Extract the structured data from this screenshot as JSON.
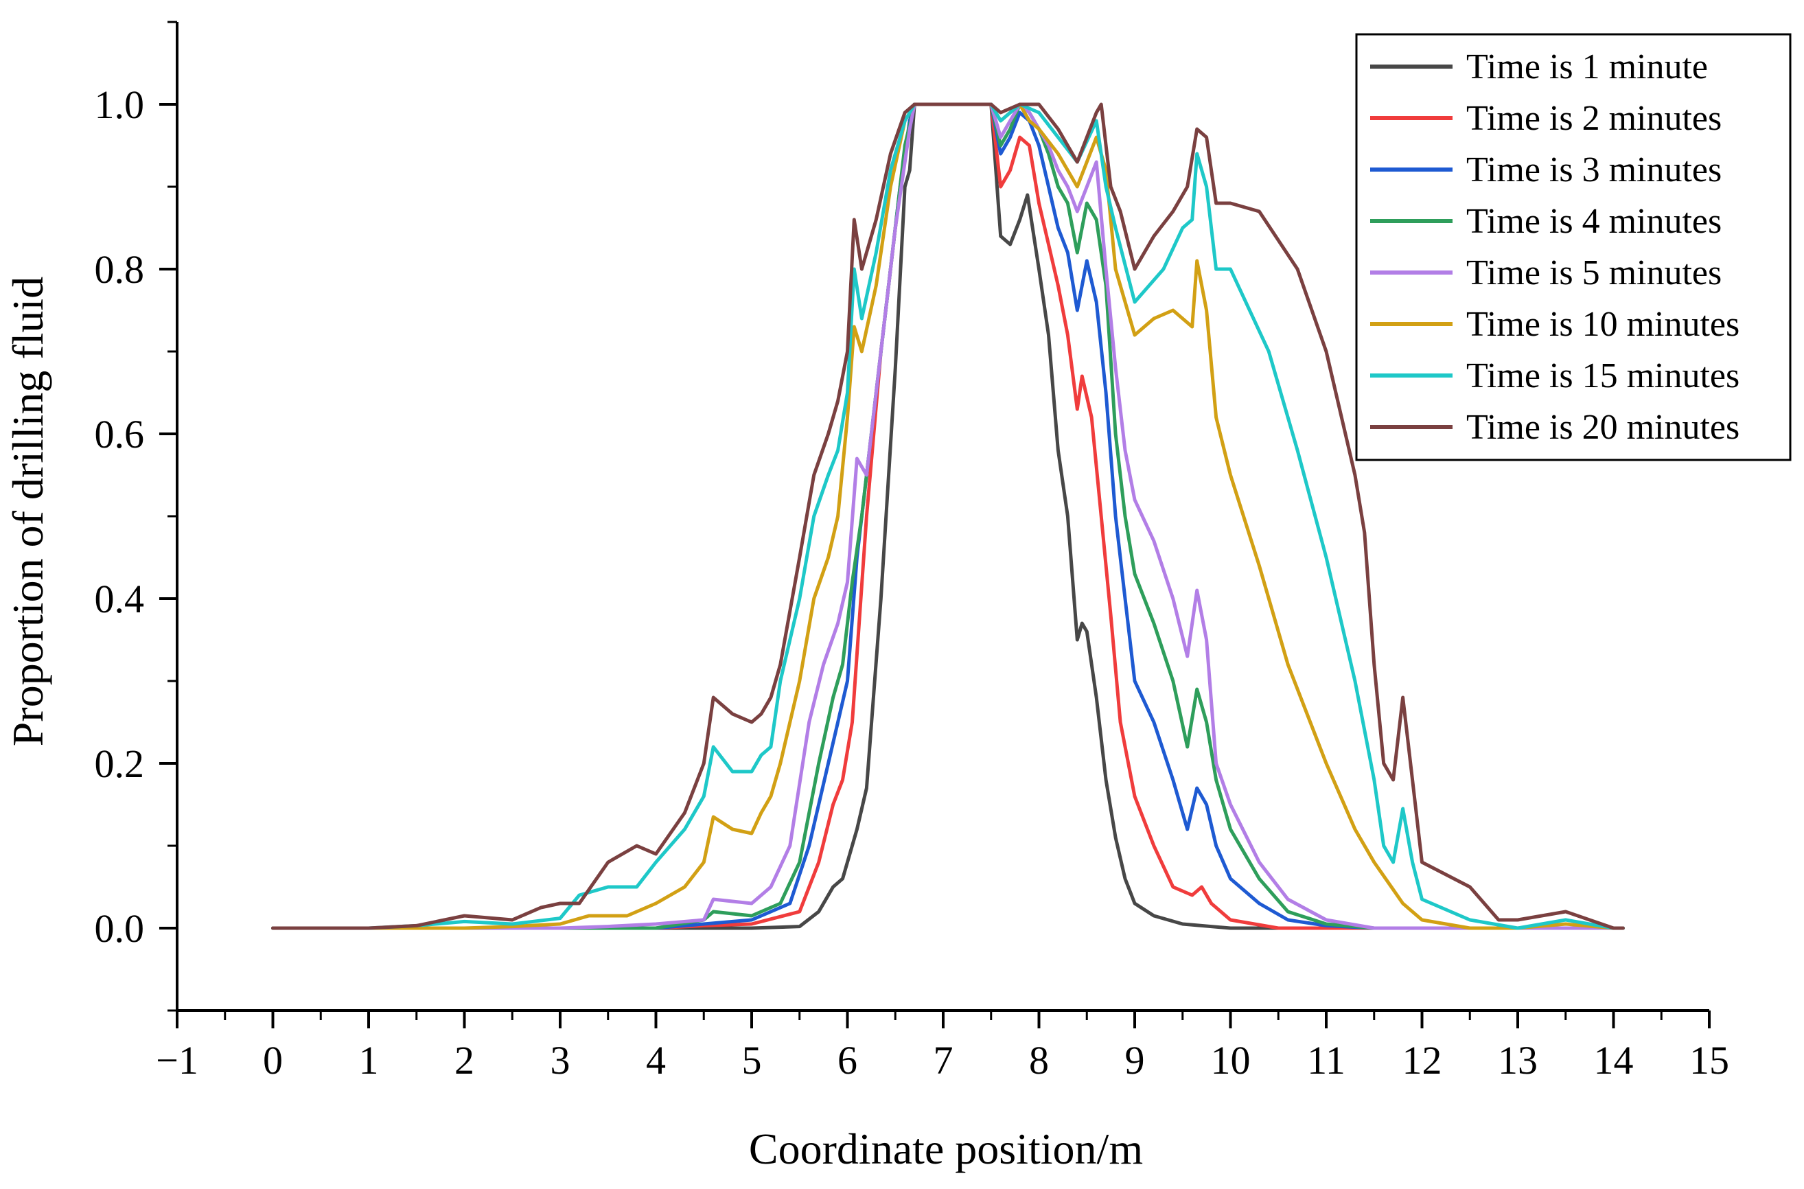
{
  "chart_data": {
    "type": "line",
    "title": "",
    "xlabel": "Coordinate position/m",
    "ylabel": "Proportion of drilling fluid",
    "xlim": [
      -1,
      15
    ],
    "ylim": [
      -0.1,
      1.1
    ],
    "xticks": [
      -1,
      0,
      1,
      2,
      3,
      4,
      5,
      6,
      7,
      8,
      9,
      10,
      11,
      12,
      13,
      14,
      15
    ],
    "xtick_labels": [
      "−1",
      "0",
      "1",
      "2",
      "3",
      "4",
      "5",
      "6",
      "7",
      "8",
      "9",
      "10",
      "11",
      "12",
      "13",
      "14",
      "15"
    ],
    "yticks": [
      0.0,
      0.2,
      0.4,
      0.6,
      0.8,
      1.0
    ],
    "ytick_labels": [
      "0.0",
      "0.2",
      "0.4",
      "0.6",
      "0.8",
      "1.0"
    ],
    "grid": false,
    "legend_position": "top-right",
    "series": [
      {
        "name": "Time is 1 minute",
        "color": "#474747",
        "x": [
          0,
          1,
          2,
          3,
          4,
          5,
          5.5,
          5.7,
          5.85,
          5.95,
          6.1,
          6.2,
          6.35,
          6.5,
          6.6,
          6.65,
          6.7,
          6.75,
          7.0,
          7.5,
          7.6,
          7.7,
          7.8,
          7.88,
          8.0,
          8.1,
          8.2,
          8.3,
          8.4,
          8.45,
          8.5,
          8.6,
          8.7,
          8.8,
          8.9,
          9.0,
          9.2,
          9.5,
          10,
          11,
          12,
          13,
          14,
          14.1
        ],
        "y": [
          0,
          0,
          0,
          0,
          0,
          0,
          0.002,
          0.02,
          0.05,
          0.06,
          0.12,
          0.17,
          0.4,
          0.68,
          0.9,
          0.92,
          1.0,
          1.0,
          1.0,
          1.0,
          0.84,
          0.83,
          0.86,
          0.89,
          0.8,
          0.72,
          0.58,
          0.5,
          0.35,
          0.37,
          0.36,
          0.28,
          0.18,
          0.11,
          0.06,
          0.03,
          0.015,
          0.005,
          0,
          0,
          0,
          0,
          0,
          0
        ]
      },
      {
        "name": "Time is 2 minutes",
        "color": "#f03c3c",
        "x": [
          0,
          1,
          2,
          3,
          4,
          4.5,
          5,
          5.5,
          5.7,
          5.85,
          5.95,
          6.05,
          6.2,
          6.35,
          6.5,
          6.65,
          6.7,
          7.0,
          7.5,
          7.6,
          7.7,
          7.8,
          7.9,
          8.0,
          8.1,
          8.2,
          8.3,
          8.4,
          8.45,
          8.55,
          8.65,
          8.75,
          8.85,
          9.0,
          9.2,
          9.4,
          9.6,
          9.7,
          9.8,
          10.0,
          10.5,
          11,
          12,
          13,
          14,
          14.1
        ],
        "y": [
          0,
          0,
          0,
          0,
          0,
          0.003,
          0.005,
          0.02,
          0.08,
          0.15,
          0.18,
          0.25,
          0.5,
          0.7,
          0.85,
          0.98,
          1.0,
          1.0,
          1.0,
          0.9,
          0.92,
          0.96,
          0.95,
          0.88,
          0.83,
          0.78,
          0.72,
          0.63,
          0.67,
          0.62,
          0.5,
          0.38,
          0.25,
          0.16,
          0.1,
          0.05,
          0.04,
          0.05,
          0.03,
          0.01,
          0,
          0,
          0,
          0,
          0,
          0
        ]
      },
      {
        "name": "Time is 3 minutes",
        "color": "#1e5ad2",
        "x": [
          0,
          1,
          2,
          3,
          4,
          4.5,
          5,
          5.4,
          5.6,
          5.8,
          5.9,
          6.0,
          6.1,
          6.25,
          6.4,
          6.55,
          6.65,
          6.7,
          7.0,
          7.5,
          7.6,
          7.7,
          7.8,
          7.9,
          8.0,
          8.1,
          8.2,
          8.3,
          8.4,
          8.5,
          8.6,
          8.7,
          8.8,
          8.9,
          9.0,
          9.2,
          9.4,
          9.55,
          9.65,
          9.75,
          9.85,
          10.0,
          10.3,
          10.6,
          11,
          11.5,
          12,
          13,
          14,
          14.1
        ],
        "y": [
          0,
          0,
          0,
          0,
          0,
          0.005,
          0.01,
          0.03,
          0.1,
          0.2,
          0.25,
          0.3,
          0.45,
          0.6,
          0.75,
          0.9,
          0.98,
          1.0,
          1.0,
          1.0,
          0.94,
          0.96,
          0.99,
          0.98,
          0.95,
          0.9,
          0.85,
          0.82,
          0.75,
          0.81,
          0.76,
          0.65,
          0.5,
          0.4,
          0.3,
          0.25,
          0.18,
          0.12,
          0.17,
          0.15,
          0.1,
          0.06,
          0.03,
          0.01,
          0.003,
          0,
          0,
          0,
          0,
          0
        ]
      },
      {
        "name": "Time is 4 minutes",
        "color": "#2e9e5b",
        "x": [
          0,
          1,
          2,
          3,
          4,
          4.5,
          4.6,
          5,
          5.3,
          5.5,
          5.7,
          5.85,
          5.95,
          6.05,
          6.15,
          6.3,
          6.45,
          6.6,
          6.7,
          7.0,
          7.5,
          7.6,
          7.7,
          7.8,
          7.9,
          8.0,
          8.1,
          8.2,
          8.3,
          8.4,
          8.5,
          8.6,
          8.7,
          8.8,
          8.9,
          9.0,
          9.2,
          9.4,
          9.55,
          9.65,
          9.75,
          9.85,
          10.0,
          10.3,
          10.6,
          11,
          11.5,
          12,
          13,
          14,
          14.1
        ],
        "y": [
          0,
          0,
          0,
          0,
          0,
          0.01,
          0.02,
          0.015,
          0.03,
          0.08,
          0.2,
          0.28,
          0.32,
          0.42,
          0.5,
          0.65,
          0.8,
          0.95,
          1.0,
          1.0,
          1.0,
          0.95,
          0.97,
          1.0,
          0.99,
          0.97,
          0.94,
          0.9,
          0.88,
          0.82,
          0.88,
          0.86,
          0.78,
          0.6,
          0.5,
          0.43,
          0.37,
          0.3,
          0.22,
          0.29,
          0.25,
          0.18,
          0.12,
          0.06,
          0.02,
          0.005,
          0,
          0,
          0,
          0,
          0
        ]
      },
      {
        "name": "Time is 5 minutes",
        "color": "#b27ee6",
        "x": [
          0,
          1,
          2,
          3,
          3.5,
          4,
          4.5,
          4.6,
          5,
          5.2,
          5.4,
          5.6,
          5.75,
          5.9,
          6.0,
          6.1,
          6.2,
          6.35,
          6.5,
          6.65,
          6.7,
          7.0,
          7.5,
          7.6,
          7.7,
          7.8,
          7.9,
          8.0,
          8.1,
          8.2,
          8.3,
          8.4,
          8.5,
          8.6,
          8.7,
          8.8,
          8.9,
          9.0,
          9.2,
          9.4,
          9.55,
          9.65,
          9.75,
          9.85,
          10.0,
          10.3,
          10.6,
          11,
          11.5,
          12,
          13,
          14,
          14.1
        ],
        "y": [
          0,
          0,
          0,
          0,
          0.002,
          0.005,
          0.01,
          0.035,
          0.03,
          0.05,
          0.1,
          0.25,
          0.32,
          0.37,
          0.42,
          0.57,
          0.55,
          0.7,
          0.85,
          0.97,
          1.0,
          1.0,
          1.0,
          0.96,
          0.98,
          1.0,
          0.99,
          0.97,
          0.95,
          0.92,
          0.9,
          0.87,
          0.9,
          0.93,
          0.8,
          0.68,
          0.58,
          0.52,
          0.47,
          0.4,
          0.33,
          0.41,
          0.35,
          0.2,
          0.15,
          0.08,
          0.035,
          0.01,
          0,
          0,
          0,
          0,
          0
        ]
      },
      {
        "name": "Time is 10 minutes",
        "color": "#d2a014",
        "x": [
          0,
          1,
          2,
          2.5,
          3,
          3.3,
          3.7,
          4,
          4.3,
          4.5,
          4.6,
          4.8,
          5,
          5.1,
          5.2,
          5.3,
          5.5,
          5.65,
          5.8,
          5.9,
          6.0,
          6.07,
          6.15,
          6.3,
          6.45,
          6.6,
          6.7,
          7.0,
          7.5,
          7.6,
          7.7,
          7.8,
          7.9,
          8.0,
          8.2,
          8.4,
          8.6,
          8.7,
          8.8,
          9.0,
          9.2,
          9.4,
          9.6,
          9.65,
          9.75,
          9.85,
          10.0,
          10.3,
          10.6,
          11,
          11.3,
          11.5,
          11.8,
          12,
          12.5,
          13,
          13.5,
          14,
          14.1
        ],
        "y": [
          0,
          0,
          0,
          0.002,
          0.005,
          0.015,
          0.015,
          0.03,
          0.05,
          0.08,
          0.135,
          0.12,
          0.115,
          0.14,
          0.16,
          0.2,
          0.3,
          0.4,
          0.45,
          0.5,
          0.62,
          0.73,
          0.7,
          0.78,
          0.9,
          0.98,
          1.0,
          1.0,
          1.0,
          0.98,
          0.99,
          1.0,
          0.98,
          0.97,
          0.94,
          0.9,
          0.96,
          0.92,
          0.8,
          0.72,
          0.74,
          0.75,
          0.73,
          0.81,
          0.75,
          0.62,
          0.55,
          0.44,
          0.32,
          0.2,
          0.12,
          0.08,
          0.03,
          0.01,
          0,
          0,
          0.005,
          0,
          0
        ]
      },
      {
        "name": "Time is 15 minutes",
        "color": "#1ec8c8",
        "x": [
          0,
          1,
          1.5,
          2,
          2.5,
          3,
          3.2,
          3.5,
          3.8,
          4,
          4.3,
          4.5,
          4.6,
          4.8,
          5,
          5.1,
          5.2,
          5.3,
          5.5,
          5.65,
          5.8,
          5.9,
          6.0,
          6.07,
          6.15,
          6.3,
          6.45,
          6.6,
          6.7,
          7.0,
          7.5,
          7.6,
          7.7,
          7.8,
          8.0,
          8.2,
          8.4,
          8.6,
          8.7,
          8.8,
          9.0,
          9.3,
          9.5,
          9.6,
          9.65,
          9.75,
          9.85,
          10.0,
          10.4,
          10.7,
          11,
          11.3,
          11.5,
          11.6,
          11.7,
          11.8,
          11.9,
          12,
          12.5,
          13,
          13.5,
          14,
          14.1
        ],
        "y": [
          0,
          0,
          0.003,
          0.008,
          0.005,
          0.012,
          0.04,
          0.05,
          0.05,
          0.08,
          0.12,
          0.16,
          0.22,
          0.19,
          0.19,
          0.21,
          0.22,
          0.3,
          0.4,
          0.5,
          0.55,
          0.58,
          0.65,
          0.8,
          0.74,
          0.82,
          0.92,
          0.98,
          1.0,
          1.0,
          1.0,
          0.98,
          0.99,
          1.0,
          0.99,
          0.96,
          0.93,
          0.98,
          0.9,
          0.85,
          0.76,
          0.8,
          0.85,
          0.86,
          0.94,
          0.9,
          0.8,
          0.8,
          0.7,
          0.58,
          0.45,
          0.3,
          0.18,
          0.1,
          0.08,
          0.145,
          0.08,
          0.035,
          0.01,
          0,
          0.01,
          0,
          0
        ]
      },
      {
        "name": "Time is 20 minutes",
        "color": "#7a4040",
        "x": [
          0,
          1,
          1.5,
          2,
          2.5,
          2.8,
          3,
          3.2,
          3.5,
          3.8,
          4,
          4.3,
          4.5,
          4.6,
          4.8,
          5,
          5.1,
          5.2,
          5.3,
          5.5,
          5.65,
          5.8,
          5.9,
          6.0,
          6.07,
          6.15,
          6.3,
          6.45,
          6.6,
          6.7,
          7.0,
          7.5,
          7.6,
          7.8,
          8.0,
          8.2,
          8.4,
          8.6,
          8.65,
          8.75,
          8.85,
          9.0,
          9.2,
          9.4,
          9.55,
          9.65,
          9.75,
          9.85,
          10.0,
          10.3,
          10.7,
          11,
          11.3,
          11.4,
          11.5,
          11.6,
          11.7,
          11.8,
          11.9,
          12,
          12.5,
          12.8,
          13,
          13.5,
          14,
          14.1
        ],
        "y": [
          0,
          0,
          0.003,
          0.015,
          0.01,
          0.025,
          0.03,
          0.03,
          0.08,
          0.1,
          0.09,
          0.14,
          0.2,
          0.28,
          0.26,
          0.25,
          0.26,
          0.28,
          0.32,
          0.45,
          0.55,
          0.6,
          0.64,
          0.7,
          0.86,
          0.8,
          0.86,
          0.94,
          0.99,
          1.0,
          1.0,
          1.0,
          0.99,
          1.0,
          1.0,
          0.97,
          0.93,
          0.99,
          1.0,
          0.9,
          0.87,
          0.8,
          0.84,
          0.87,
          0.9,
          0.97,
          0.96,
          0.88,
          0.88,
          0.87,
          0.8,
          0.7,
          0.55,
          0.48,
          0.32,
          0.2,
          0.18,
          0.28,
          0.18,
          0.08,
          0.05,
          0.01,
          0.01,
          0.02,
          0,
          0
        ]
      }
    ]
  }
}
